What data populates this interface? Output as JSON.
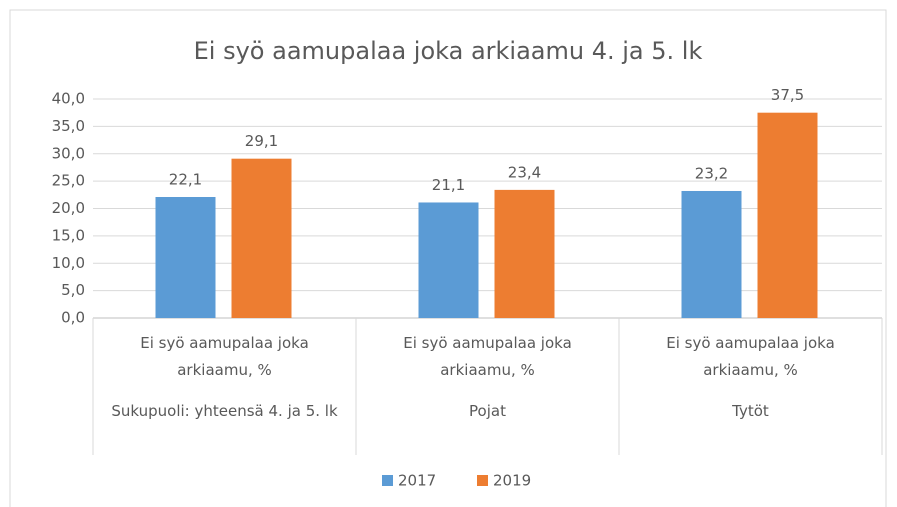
{
  "chart_data": {
    "type": "bar",
    "title": "Ei syö aamupalaa joka arkiaamu 4. ja 5. lk",
    "subcategories": [
      "Ei syö aamupalaa joka arkiaamu, %",
      "Ei syö aamupalaa joka arkiaamu, %",
      "Ei syö aamupalaa joka arkiaamu, %"
    ],
    "categories": [
      "Sukupuoli: yhteensä 4. ja 5. lk",
      "Pojat",
      "Tytöt"
    ],
    "series": [
      {
        "name": "2017",
        "color": "#5b9bd5",
        "values": [
          22.1,
          21.1,
          23.2
        ],
        "value_labels": [
          "22,1",
          "21,1",
          "23,2"
        ]
      },
      {
        "name": "2019",
        "color": "#ed7d31",
        "values": [
          29.1,
          23.4,
          37.5
        ],
        "value_labels": [
          "29,1",
          "23,4",
          "37,5"
        ]
      }
    ],
    "ylim": [
      0,
      40
    ],
    "yticks": [
      {
        "value": 0,
        "label": "0,0"
      },
      {
        "value": 5,
        "label": "5,0"
      },
      {
        "value": 10,
        "label": "10,0"
      },
      {
        "value": 15,
        "label": "15,0"
      },
      {
        "value": 20,
        "label": "20,0"
      },
      {
        "value": 25,
        "label": "25,0"
      },
      {
        "value": 30,
        "label": "30,0"
      },
      {
        "value": 35,
        "label": "35,0"
      },
      {
        "value": 40,
        "label": "40,0"
      }
    ],
    "grid": true,
    "legend": "bottom"
  }
}
